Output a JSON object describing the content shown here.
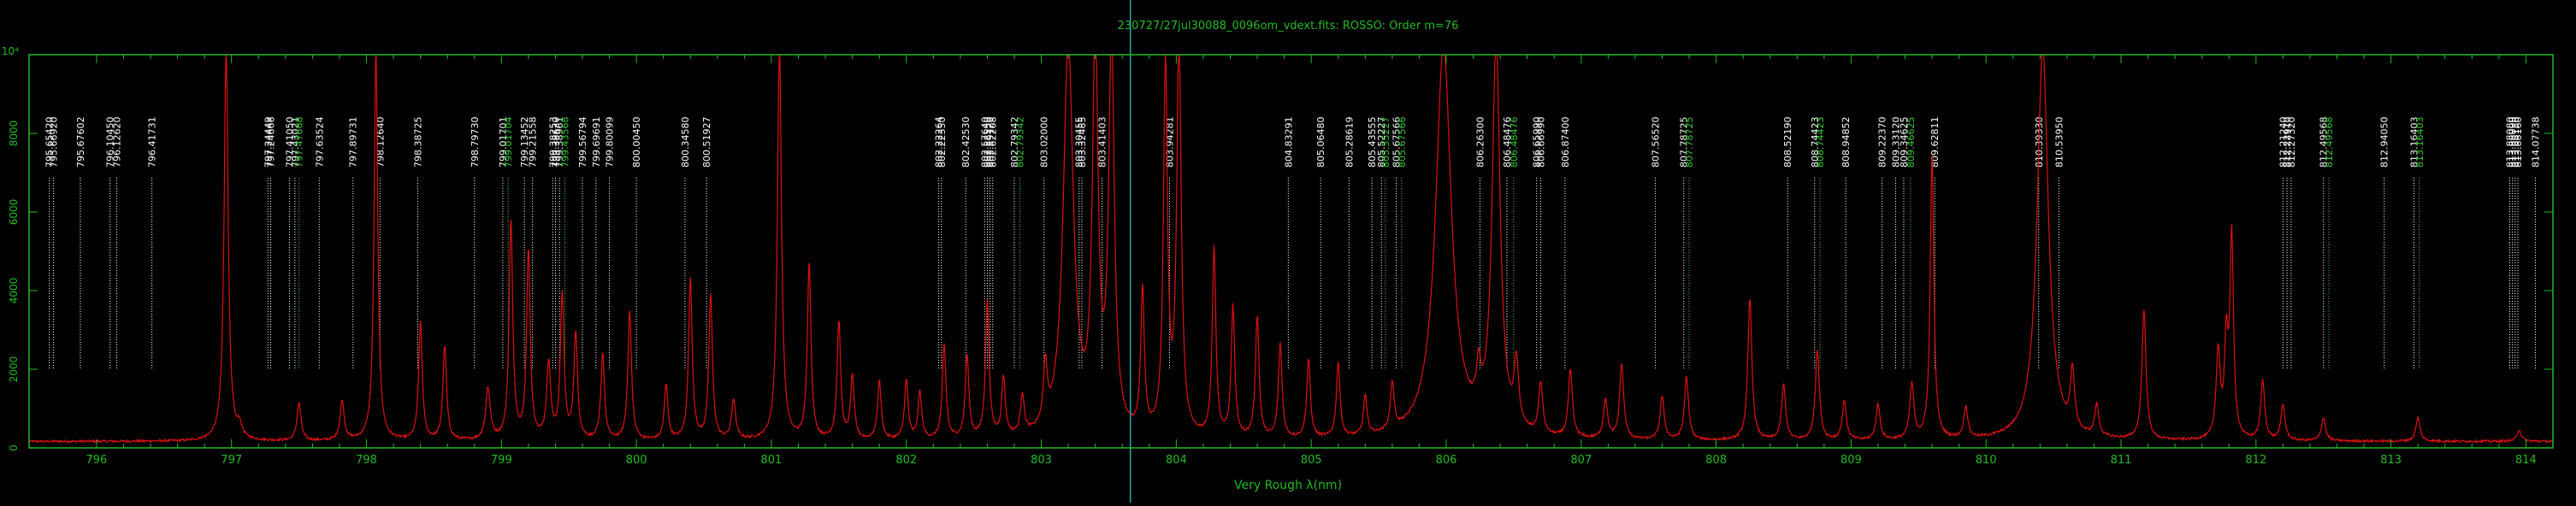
{
  "chart_data": {
    "type": "line",
    "title": "230727/27jul30088_0096om_vdext.fits: ROSSO: Order m=76",
    "xlabel": "Very Rough λ(nm)",
    "ylabel": "",
    "xlim": [
      795.5,
      814.2
    ],
    "ylim": [
      0,
      10000
    ],
    "y_top_label": "10⁴",
    "x_ticks": [
      796,
      797,
      798,
      799,
      800,
      801,
      802,
      803,
      804,
      805,
      806,
      807,
      808,
      809,
      810,
      811,
      812,
      813,
      814
    ],
    "x_tick_labels": [
      "796",
      "797",
      "798",
      "799",
      "800",
      "801",
      "802",
      "803",
      "804",
      "805",
      "806",
      "807",
      "808",
      "809",
      "810",
      "811",
      "812",
      "813",
      "814"
    ],
    "y_ticks": [
      0,
      2000,
      4000,
      6000,
      8000
    ],
    "y_tick_labels": [
      "0",
      "2000",
      "4000",
      "6000",
      "8000"
    ],
    "grid": false,
    "cursor_x": 803.66,
    "colors": {
      "spectrum": "#dd1111",
      "axes": "#22bb22",
      "white_marker": "#ffffff",
      "green_marker": "#33cc33",
      "cursor": "#22aaaa"
    },
    "series": [
      {
        "values": {
          "baseline": 150,
          "noise": 60,
          "peaks": [
            [
              796.96,
              10000,
              0.018
            ],
            [
              797.06,
              300,
              0.02
            ],
            [
              797.5,
              950,
              0.018
            ],
            [
              797.82,
              1000,
              0.018
            ],
            [
              798.07,
              10000,
              0.016
            ],
            [
              798.4,
              3000,
              0.016
            ],
            [
              798.58,
              2400,
              0.016
            ],
            [
              798.9,
              1300,
              0.02
            ],
            [
              799.07,
              5600,
              0.016
            ],
            [
              799.2,
              4800,
              0.016
            ],
            [
              799.35,
              1900,
              0.018
            ],
            [
              799.45,
              3700,
              0.016
            ],
            [
              799.55,
              2700,
              0.016
            ],
            [
              799.75,
              2200,
              0.016
            ],
            [
              799.95,
              3300,
              0.016
            ],
            [
              800.22,
              1400,
              0.016
            ],
            [
              800.4,
              4100,
              0.016
            ],
            [
              800.55,
              3700,
              0.016
            ],
            [
              800.72,
              1000,
              0.018
            ],
            [
              801.06,
              10000,
              0.018
            ],
            [
              801.28,
              4500,
              0.016
            ],
            [
              801.5,
              3000,
              0.016
            ],
            [
              801.6,
              1600,
              0.016
            ],
            [
              801.8,
              1500,
              0.016
            ],
            [
              802.0,
              1500,
              0.016
            ],
            [
              802.1,
              1200,
              0.016
            ],
            [
              802.28,
              2400,
              0.016
            ],
            [
              802.45,
              2100,
              0.016
            ],
            [
              802.6,
              3500,
              0.016
            ],
            [
              802.72,
              1500,
              0.016
            ],
            [
              802.86,
              1000,
              0.016
            ],
            [
              803.03,
              1500,
              0.016
            ],
            [
              803.2,
              10000,
              0.045
            ],
            [
              803.4,
              10000,
              0.025
            ],
            [
              803.52,
              10000,
              0.025
            ],
            [
              803.75,
              3600,
              0.016
            ],
            [
              803.92,
              9400,
              0.018
            ],
            [
              804.02,
              10000,
              0.02
            ],
            [
              804.28,
              4800,
              0.016
            ],
            [
              804.42,
              3300,
              0.016
            ],
            [
              804.6,
              3100,
              0.016
            ],
            [
              804.77,
              2400,
              0.016
            ],
            [
              804.98,
              2000,
              0.016
            ],
            [
              805.2,
              1900,
              0.016
            ],
            [
              805.4,
              1000,
              0.016
            ],
            [
              805.6,
              1200,
              0.016
            ],
            [
              805.98,
              10000,
              0.07
            ],
            [
              806.24,
              1000,
              0.018
            ],
            [
              806.37,
              10000,
              0.035
            ],
            [
              806.52,
              1600,
              0.02
            ],
            [
              806.7,
              1300,
              0.018
            ],
            [
              806.92,
              1700,
              0.018
            ],
            [
              807.18,
              1000,
              0.018
            ],
            [
              807.3,
              1900,
              0.018
            ],
            [
              807.6,
              1100,
              0.018
            ],
            [
              807.78,
              1600,
              0.018
            ],
            [
              808.25,
              3600,
              0.018
            ],
            [
              808.5,
              1400,
              0.018
            ],
            [
              808.75,
              2300,
              0.018
            ],
            [
              808.95,
              1000,
              0.018
            ],
            [
              809.2,
              900,
              0.018
            ],
            [
              809.45,
              1400,
              0.018
            ],
            [
              809.6,
              7200,
              0.016
            ],
            [
              809.85,
              800,
              0.018
            ],
            [
              810.42,
              10000,
              0.05
            ],
            [
              810.64,
              1500,
              0.018
            ],
            [
              810.82,
              800,
              0.018
            ],
            [
              811.17,
              3300,
              0.018
            ],
            [
              811.72,
              2200,
              0.018
            ],
            [
              811.78,
              2300,
              0.016
            ],
            [
              811.82,
              5100,
              0.016
            ],
            [
              812.05,
              1500,
              0.018
            ],
            [
              812.2,
              900,
              0.018
            ],
            [
              812.5,
              600,
              0.018
            ],
            [
              813.2,
              600,
              0.018
            ],
            [
              813.95,
              300,
              0.018
            ]
          ]
        }
      }
    ],
    "markers": [
      {
        "x": 795.65,
        "label": "795.65420",
        "color": "white"
      },
      {
        "x": 795.68,
        "label": "795.66920",
        "color": "white"
      },
      {
        "x": 795.88,
        "label": "795.67602",
        "color": "white"
      },
      {
        "x": 796.1,
        "label": "796.10450",
        "color": "white"
      },
      {
        "x": 796.15,
        "label": "796.12620",
        "color": "white"
      },
      {
        "x": 796.41,
        "label": "796.41731",
        "color": "white"
      },
      {
        "x": 797.27,
        "label": "797.24449",
        "color": "white"
      },
      {
        "x": 797.29,
        "label": "797.24666",
        "color": "white"
      },
      {
        "x": 797.43,
        "label": "797.41050",
        "color": "white"
      },
      {
        "x": 797.47,
        "label": "797.43021",
        "color": "white"
      },
      {
        "x": 797.5,
        "label": "797.47688",
        "color": "green"
      },
      {
        "x": 797.65,
        "label": "797.63524",
        "color": "white"
      },
      {
        "x": 797.9,
        "label": "797.89731",
        "color": "white"
      },
      {
        "x": 798.1,
        "label": "798.12640",
        "color": "white"
      },
      {
        "x": 798.38,
        "label": "798.38725",
        "color": "white"
      },
      {
        "x": 798.8,
        "label": "798.79730",
        "color": "white"
      },
      {
        "x": 799.01,
        "label": "799.01701",
        "color": "white"
      },
      {
        "x": 799.05,
        "label": "799.01704",
        "color": "green"
      },
      {
        "x": 799.17,
        "label": "799.13452",
        "color": "white"
      },
      {
        "x": 799.23,
        "label": "799.21558",
        "color": "white"
      },
      {
        "x": 799.38,
        "label": "799.38253",
        "color": "white"
      },
      {
        "x": 799.4,
        "label": "799.38630",
        "color": "white"
      },
      {
        "x": 799.43,
        "label": "799.38961",
        "color": "white"
      },
      {
        "x": 799.47,
        "label": "799.43568",
        "color": "green"
      },
      {
        "x": 799.6,
        "label": "799.56794",
        "color": "white"
      },
      {
        "x": 799.7,
        "label": "799.69691",
        "color": "white"
      },
      {
        "x": 799.8,
        "label": "799.80099",
        "color": "white"
      },
      {
        "x": 800.0,
        "label": "800.00450",
        "color": "white"
      },
      {
        "x": 800.36,
        "label": "800.34580",
        "color": "white"
      },
      {
        "x": 800.52,
        "label": "800.51927",
        "color": "white"
      },
      {
        "x": 802.24,
        "label": "802.22264",
        "color": "white"
      },
      {
        "x": 802.26,
        "label": "802.22350",
        "color": "white"
      },
      {
        "x": 802.44,
        "label": "802.42530",
        "color": "white"
      },
      {
        "x": 802.58,
        "label": "802.57640",
        "color": "white"
      },
      {
        "x": 802.6,
        "label": "802.58550",
        "color": "white"
      },
      {
        "x": 802.62,
        "label": "802.59120",
        "color": "white"
      },
      {
        "x": 802.64,
        "label": "802.62208",
        "color": "white"
      },
      {
        "x": 802.8,
        "label": "802.79342",
        "color": "white"
      },
      {
        "x": 802.84,
        "label": "802.79342",
        "color": "green"
      },
      {
        "x": 803.02,
        "label": "803.02000",
        "color": "white"
      },
      {
        "x": 803.28,
        "label": "803.30455",
        "color": "white"
      },
      {
        "x": 803.3,
        "label": "803.32485",
        "color": "white"
      },
      {
        "x": 803.45,
        "label": "803.41403",
        "color": "white"
      },
      {
        "x": 803.95,
        "label": "803.94281",
        "color": "white"
      },
      {
        "x": 804.83,
        "label": "804.83291",
        "color": "white"
      },
      {
        "x": 805.07,
        "label": "805.06480",
        "color": "white"
      },
      {
        "x": 805.28,
        "label": "805.28619",
        "color": "white"
      },
      {
        "x": 805.45,
        "label": "805.43555",
        "color": "white"
      },
      {
        "x": 805.52,
        "label": "805.52227",
        "color": "white"
      },
      {
        "x": 805.55,
        "label": "805.55227",
        "color": "green"
      },
      {
        "x": 805.63,
        "label": "805.67566",
        "color": "white"
      },
      {
        "x": 805.67,
        "label": "805.67566",
        "color": "green"
      },
      {
        "x": 806.25,
        "label": "806.26300",
        "color": "white"
      },
      {
        "x": 806.45,
        "label": "806.48476",
        "color": "white"
      },
      {
        "x": 806.5,
        "label": "806.48476",
        "color": "green"
      },
      {
        "x": 806.67,
        "label": "806.65990",
        "color": "white"
      },
      {
        "x": 806.7,
        "label": "806.66990",
        "color": "white"
      },
      {
        "x": 806.88,
        "label": "806.87400",
        "color": "white"
      },
      {
        "x": 807.55,
        "label": "807.56520",
        "color": "white"
      },
      {
        "x": 807.76,
        "label": "807.78725",
        "color": "white"
      },
      {
        "x": 807.8,
        "label": "807.78725",
        "color": "green"
      },
      {
        "x": 808.53,
        "label": "808.52190",
        "color": "white"
      },
      {
        "x": 808.73,
        "label": "808.74423",
        "color": "white"
      },
      {
        "x": 808.77,
        "label": "808.74423",
        "color": "green"
      },
      {
        "x": 808.96,
        "label": "808.94852",
        "color": "white"
      },
      {
        "x": 809.23,
        "label": "809.22370",
        "color": "white"
      },
      {
        "x": 809.33,
        "label": "809.33120",
        "color": "white"
      },
      {
        "x": 809.39,
        "label": "809.34625",
        "color": "white"
      },
      {
        "x": 809.44,
        "label": "809.46625",
        "color": "green"
      },
      {
        "x": 809.62,
        "label": "809.62811",
        "color": "white"
      },
      {
        "x": 810.39,
        "label": "810.39330",
        "color": "white"
      },
      {
        "x": 810.54,
        "label": "810.53950",
        "color": "white"
      },
      {
        "x": 812.2,
        "label": "812.21240",
        "color": "white"
      },
      {
        "x": 812.23,
        "label": "812.22910",
        "color": "white"
      },
      {
        "x": 812.26,
        "label": "812.27320",
        "color": "white"
      },
      {
        "x": 812.5,
        "label": "812.49568",
        "color": "white"
      },
      {
        "x": 812.54,
        "label": "812.49568",
        "color": "green"
      },
      {
        "x": 812.95,
        "label": "812.94050",
        "color": "white"
      },
      {
        "x": 813.17,
        "label": "813.16403",
        "color": "white"
      },
      {
        "x": 813.21,
        "label": "813.16403",
        "color": "green"
      },
      {
        "x": 813.88,
        "label": "813.88080",
        "color": "white"
      },
      {
        "x": 813.9,
        "label": "813.88090",
        "color": "white"
      },
      {
        "x": 813.92,
        "label": "813.88150",
        "color": "white"
      },
      {
        "x": 813.94,
        "label": "813.88160",
        "color": "white"
      },
      {
        "x": 814.07,
        "label": "814.07738",
        "color": "white"
      }
    ]
  }
}
